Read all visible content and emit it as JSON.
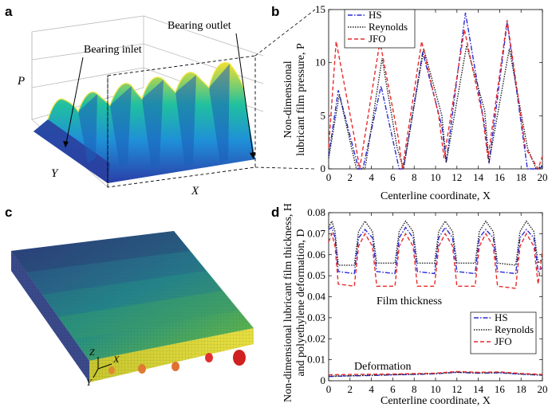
{
  "panels": {
    "a": {
      "label": "a",
      "annotations": {
        "inlet": "Bearing inlet",
        "outlet": "Bearing outlet"
      },
      "axes": {
        "z": "P",
        "y": "Y",
        "x": "X"
      }
    },
    "b": {
      "label": "b",
      "xlabel": "Centerline coordinate, X",
      "ylabel_line1": "Non-dimensional",
      "ylabel_line2": "lubricant film pressure, P"
    },
    "c": {
      "label": "c",
      "axes": {
        "x": "X",
        "y": "Y",
        "z": "Z"
      }
    },
    "d": {
      "label": "d",
      "xlabel": "Centerline coordinate, X",
      "ylabel_line1": "Non-dimensional lubricant film thickness, H",
      "ylabel_line2": "and polyethylene deformation, D",
      "annotations": {
        "film": "Film thickness",
        "deformation": "Deformation"
      }
    }
  },
  "chart_data": [
    {
      "type": "line",
      "panel": "b",
      "xlabel": "Centerline coordinate, X",
      "ylabel": "Non-dimensional lubricant film pressure, P",
      "xlim": [
        0,
        20
      ],
      "ylim": [
        0,
        15
      ],
      "xticks": [
        "0",
        "2",
        "4",
        "6",
        "8",
        "10",
        "12",
        "14",
        "16",
        "18",
        "20"
      ],
      "yticks": [
        "0",
        "5",
        "10",
        "15"
      ],
      "legend_position": "top-left",
      "series": [
        {
          "name": "HS",
          "color": "#2b2bd6",
          "dash": "dashdot",
          "points": [
            [
              0,
              1.2
            ],
            [
              0.9,
              7.4
            ],
            [
              2.8,
              0
            ],
            [
              3.2,
              0
            ],
            [
              4.9,
              7.8
            ],
            [
              6.6,
              0
            ],
            [
              7.0,
              0
            ],
            [
              8.8,
              11.0
            ],
            [
              10.6,
              4.0
            ],
            [
              11.0,
              0.6
            ],
            [
              12.8,
              14.7
            ],
            [
              14.6,
              4.0
            ],
            [
              15.0,
              0.5
            ],
            [
              16.7,
              13.8
            ],
            [
              18.6,
              0
            ],
            [
              19.6,
              0
            ],
            [
              20,
              0.2
            ]
          ]
        },
        {
          "name": "Reynolds",
          "color": "#222222",
          "dash": "dot",
          "points": [
            [
              0,
              1.0
            ],
            [
              1.0,
              7.0
            ],
            [
              2.6,
              0
            ],
            [
              3.4,
              0
            ],
            [
              5.0,
              10.4
            ],
            [
              6.4,
              2.0
            ],
            [
              7.0,
              0
            ],
            [
              8.9,
              11.3
            ],
            [
              10.6,
              5.0
            ],
            [
              11.0,
              0.6
            ],
            [
              12.9,
              11.6
            ],
            [
              14.6,
              5.5
            ],
            [
              15.0,
              0.6
            ],
            [
              16.9,
              11.3
            ],
            [
              18.6,
              2.0
            ],
            [
              19.4,
              0
            ],
            [
              20,
              0.3
            ]
          ]
        },
        {
          "name": "JFO",
          "color": "#e82b2b",
          "dash": "dash",
          "points": [
            [
              0,
              2.0
            ],
            [
              0.7,
              12.0
            ],
            [
              2.4,
              3.0
            ],
            [
              2.9,
              0
            ],
            [
              4.8,
              12.0
            ],
            [
              6.5,
              3.0
            ],
            [
              6.9,
              0
            ],
            [
              8.7,
              12.0
            ],
            [
              10.3,
              5.0
            ],
            [
              10.8,
              1.0
            ],
            [
              12.7,
              13.1
            ],
            [
              14.4,
              5.0
            ],
            [
              14.9,
              1.0
            ],
            [
              16.7,
              14.0
            ],
            [
              18.4,
              2.0
            ],
            [
              19.6,
              0
            ],
            [
              20,
              1.2
            ]
          ]
        }
      ]
    },
    {
      "type": "line",
      "panel": "d",
      "xlabel": "Centerline coordinate, X",
      "ylabel": "Non-dimensional lubricant film thickness, H and polyethylene deformation, D",
      "xlim": [
        0,
        20
      ],
      "ylim": [
        0,
        0.08
      ],
      "xticks": [
        "0",
        "2",
        "4",
        "6",
        "8",
        "10",
        "12",
        "14",
        "16",
        "18",
        "20"
      ],
      "yticks": [
        "0",
        "0.01",
        "0.02",
        "0.03",
        "0.04",
        "0.05",
        "0.06",
        "0.07",
        "0.08"
      ],
      "legend_position": "bottom-right",
      "series": [
        {
          "name": "HS",
          "color": "#2b2bd6",
          "dash": "dashdot",
          "points": [
            [
              0,
              0.072
            ],
            [
              0.3,
              0.073
            ],
            [
              0.6,
              0.068
            ],
            [
              0.9,
              0.052
            ],
            [
              2.4,
              0.051
            ],
            [
              2.8,
              0.068
            ],
            [
              3.4,
              0.072
            ],
            [
              4.1,
              0.068
            ],
            [
              4.5,
              0.052
            ],
            [
              6.2,
              0.051
            ],
            [
              6.6,
              0.068
            ],
            [
              7.2,
              0.073
            ],
            [
              7.9,
              0.068
            ],
            [
              8.3,
              0.052
            ],
            [
              9.9,
              0.051
            ],
            [
              10.3,
              0.068
            ],
            [
              10.9,
              0.073
            ],
            [
              11.6,
              0.068
            ],
            [
              12.0,
              0.052
            ],
            [
              13.7,
              0.051
            ],
            [
              14.1,
              0.068
            ],
            [
              14.7,
              0.072
            ],
            [
              15.4,
              0.068
            ],
            [
              15.8,
              0.052
            ],
            [
              17.5,
              0.051
            ],
            [
              17.9,
              0.068
            ],
            [
              18.5,
              0.072
            ],
            [
              19.2,
              0.068
            ],
            [
              19.6,
              0.052
            ],
            [
              20,
              0.054
            ]
          ]
        },
        {
          "name": "Reynolds",
          "color": "#222222",
          "dash": "dot",
          "points": [
            [
              0,
              0.073
            ],
            [
              0.3,
              0.076
            ],
            [
              0.6,
              0.071
            ],
            [
              0.9,
              0.055
            ],
            [
              2.4,
              0.055
            ],
            [
              2.8,
              0.071
            ],
            [
              3.4,
              0.076
            ],
            [
              4.1,
              0.071
            ],
            [
              4.5,
              0.056
            ],
            [
              6.2,
              0.056
            ],
            [
              6.6,
              0.071
            ],
            [
              7.2,
              0.076
            ],
            [
              7.9,
              0.071
            ],
            [
              8.3,
              0.056
            ],
            [
              9.9,
              0.056
            ],
            [
              10.3,
              0.071
            ],
            [
              10.9,
              0.076
            ],
            [
              11.6,
              0.071
            ],
            [
              12.0,
              0.056
            ],
            [
              13.7,
              0.056
            ],
            [
              14.1,
              0.071
            ],
            [
              14.7,
              0.076
            ],
            [
              15.4,
              0.071
            ],
            [
              15.8,
              0.056
            ],
            [
              17.5,
              0.055
            ],
            [
              17.9,
              0.071
            ],
            [
              18.5,
              0.076
            ],
            [
              19.2,
              0.071
            ],
            [
              19.6,
              0.056
            ],
            [
              20,
              0.058
            ]
          ]
        },
        {
          "name": "JFO",
          "color": "#e82b2b",
          "dash": "dash",
          "points": [
            [
              0,
              0.066
            ],
            [
              0.3,
              0.07
            ],
            [
              0.6,
              0.064
            ],
            [
              0.9,
              0.046
            ],
            [
              2.4,
              0.045
            ],
            [
              2.8,
              0.064
            ],
            [
              3.4,
              0.07
            ],
            [
              4.1,
              0.064
            ],
            [
              4.5,
              0.045
            ],
            [
              6.2,
              0.045
            ],
            [
              6.6,
              0.064
            ],
            [
              7.2,
              0.07
            ],
            [
              7.9,
              0.064
            ],
            [
              8.3,
              0.045
            ],
            [
              9.9,
              0.045
            ],
            [
              10.3,
              0.064
            ],
            [
              10.9,
              0.07
            ],
            [
              11.6,
              0.064
            ],
            [
              12.0,
              0.045
            ],
            [
              13.7,
              0.045
            ],
            [
              14.1,
              0.064
            ],
            [
              14.7,
              0.07
            ],
            [
              15.4,
              0.064
            ],
            [
              15.8,
              0.045
            ],
            [
              17.5,
              0.044
            ],
            [
              17.9,
              0.064
            ],
            [
              18.5,
              0.07
            ],
            [
              19.2,
              0.064
            ],
            [
              19.6,
              0.046
            ],
            [
              20,
              0.062
            ]
          ]
        },
        {
          "name": "HS",
          "color": "#2b2bd6",
          "dash": "dashdot",
          "group": "deformation",
          "points": [
            [
              0,
              0.002
            ],
            [
              2,
              0.0023
            ],
            [
              4,
              0.0025
            ],
            [
              6,
              0.0028
            ],
            [
              8,
              0.003
            ],
            [
              10,
              0.0033
            ],
            [
              12,
              0.004
            ],
            [
              14,
              0.0036
            ],
            [
              16,
              0.0038
            ],
            [
              18,
              0.0031
            ],
            [
              20,
              0.0026
            ]
          ]
        },
        {
          "name": "Reynolds",
          "color": "#222222",
          "dash": "dot",
          "group": "deformation",
          "points": [
            [
              0,
              0.0022
            ],
            [
              2,
              0.0024
            ],
            [
              4,
              0.0026
            ],
            [
              6,
              0.0029
            ],
            [
              8,
              0.0031
            ],
            [
              10,
              0.0034
            ],
            [
              12,
              0.0041
            ],
            [
              14,
              0.0037
            ],
            [
              16,
              0.0039
            ],
            [
              18,
              0.0032
            ],
            [
              20,
              0.0027
            ]
          ]
        },
        {
          "name": "JFO",
          "color": "#e82b2b",
          "dash": "dash",
          "group": "deformation",
          "points": [
            [
              0,
              0.0028
            ],
            [
              2,
              0.003
            ],
            [
              4,
              0.0031
            ],
            [
              6,
              0.0032
            ],
            [
              8,
              0.0034
            ],
            [
              10,
              0.0036
            ],
            [
              12,
              0.0044
            ],
            [
              14,
              0.004
            ],
            [
              16,
              0.0042
            ],
            [
              18,
              0.0035
            ],
            [
              20,
              0.003
            ]
          ]
        }
      ]
    }
  ]
}
